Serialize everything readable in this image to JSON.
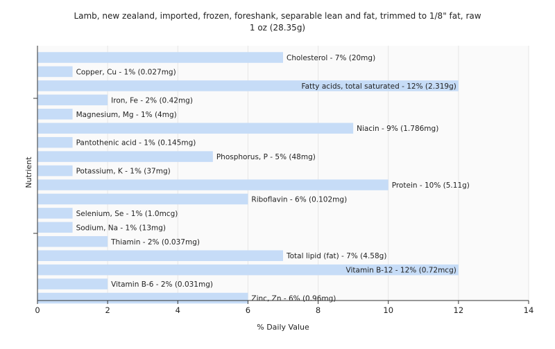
{
  "chart_data": {
    "type": "bar",
    "orientation": "horizontal",
    "title": "Lamb, new zealand, imported, frozen, foreshank, separable lean and fat, trimmed to 1/8\" fat, raw",
    "subtitle": "1 oz (28.35g)",
    "xlabel": "% Daily Value",
    "ylabel": "Nutrient",
    "xlim": [
      0,
      14
    ],
    "xticks": [
      0,
      2,
      4,
      6,
      8,
      10,
      12,
      14
    ],
    "grid": true,
    "legend": "none",
    "bar_color": "#c6dcf7",
    "categories": [
      "Cholesterol",
      "Copper, Cu",
      "Fatty acids, total saturated",
      "Iron, Fe",
      "Magnesium, Mg",
      "Niacin",
      "Pantothenic acid",
      "Phosphorus, P",
      "Potassium, K",
      "Protein",
      "Riboflavin",
      "Selenium, Se",
      "Sodium, Na",
      "Thiamin",
      "Total lipid (fat)",
      "Vitamin B-12",
      "Vitamin B-6",
      "Zinc, Zn"
    ],
    "values": [
      7,
      1,
      12,
      2,
      1,
      9,
      1,
      5,
      1,
      10,
      6,
      1,
      1,
      2,
      7,
      12,
      2,
      6
    ],
    "labels": [
      "Cholesterol - 7% (20mg)",
      "Copper, Cu - 1% (0.027mg)",
      "Fatty acids, total saturated - 12% (2.319g)",
      "Iron, Fe - 2% (0.42mg)",
      "Magnesium, Mg - 1% (4mg)",
      "Niacin - 9% (1.786mg)",
      "Pantothenic acid - 1% (0.145mg)",
      "Phosphorus, P - 5% (48mg)",
      "Potassium, K - 1% (37mg)",
      "Protein - 10% (5.11g)",
      "Riboflavin - 6% (0.102mg)",
      "Selenium, Se - 1% (1.0mcg)",
      "Sodium, Na - 1% (13mg)",
      "Thiamin - 2% (0.037mg)",
      "Total lipid (fat) - 7% (4.58g)",
      "Vitamin B-12 - 12% (0.72mcg)",
      "Vitamin B-6 - 2% (0.031mg)",
      "Zinc, Zn - 6% (0.96mg)"
    ]
  }
}
